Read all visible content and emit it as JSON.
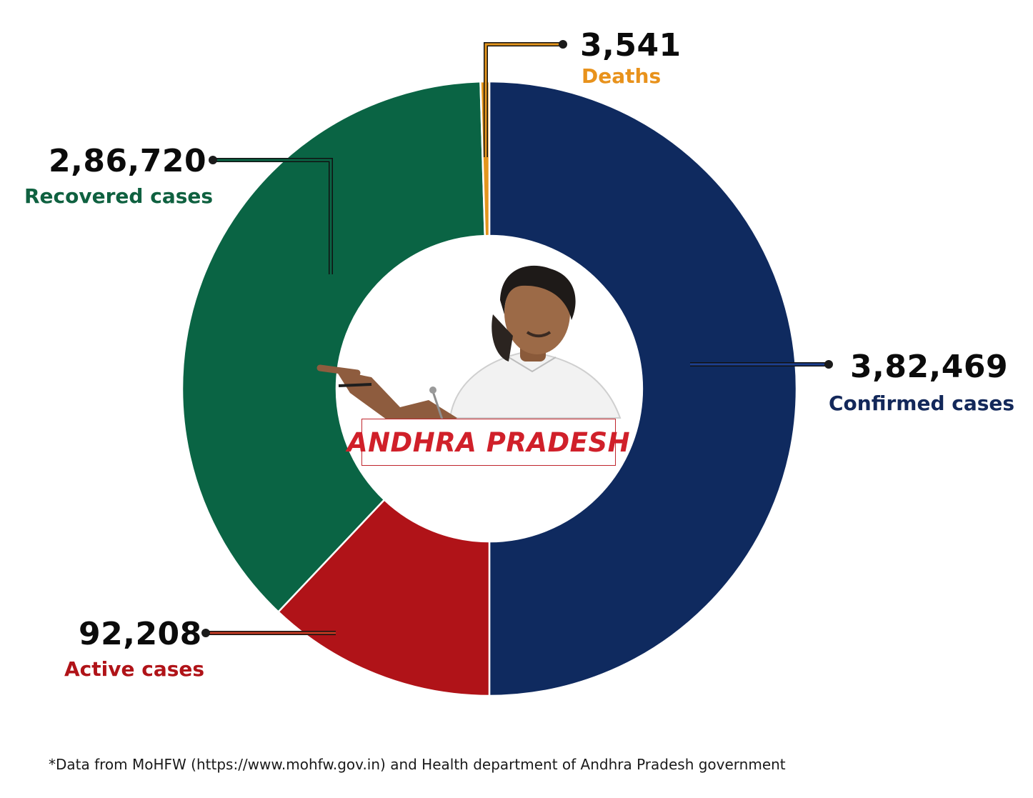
{
  "colors": {
    "confirmed": "#0f2a5f",
    "recovered": "#0a6444",
    "active": "#b01318",
    "deaths": "#e3951e",
    "confirmed_label": "#13285a",
    "recovered_label": "#0f6140",
    "active_label": "#b01318",
    "deaths_label": "#e8921c"
  },
  "chart_data": {
    "type": "pie",
    "subtype": "donut",
    "center_label": "ANDHRA PRADESH",
    "slices": [
      {
        "key": "confirmed",
        "label": "Confirmed cases",
        "value": 382469,
        "display": "3,82,469"
      },
      {
        "key": "active",
        "label": "Active cases",
        "value": 92208,
        "display": "92,208"
      },
      {
        "key": "recovered",
        "label": "Recovered cases",
        "value": 286720,
        "display": "2,86,720"
      },
      {
        "key": "deaths",
        "label": "Deaths",
        "value": 3541,
        "display": "3,541"
      }
    ]
  },
  "center_image": "portrait-of-person-pointing",
  "footnote": "*Data from MoHFW (https://www.mohfw.gov.in) and Health department of Andhra Pradesh government"
}
